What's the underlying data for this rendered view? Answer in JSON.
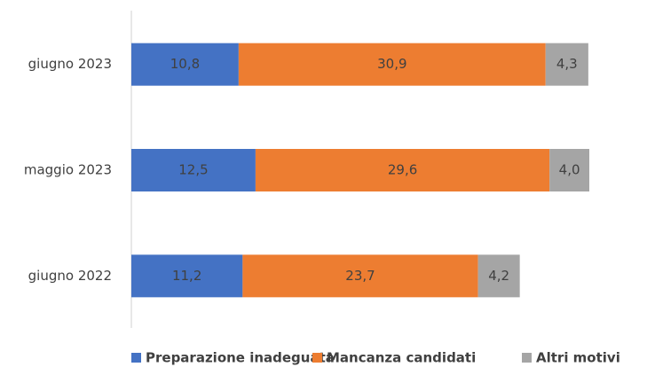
{
  "chart_data": {
    "type": "stacked-barh",
    "categories": [
      "giugno 2023",
      "maggio 2023",
      "giugno 2022"
    ],
    "series": [
      {
        "name": "Preparazione inadeguata",
        "color": "#4472c4",
        "values": [
          10.8,
          12.5,
          11.2
        ],
        "value_labels": [
          "10,8",
          "12,5",
          "11,2"
        ]
      },
      {
        "name": "Mancanza candidati",
        "color": "#ed7d31",
        "values": [
          30.9,
          29.6,
          23.7
        ],
        "value_labels": [
          "30,9",
          "29,6",
          "23,7"
        ]
      },
      {
        "name": "Altri motivi",
        "color": "#a5a5a5",
        "values": [
          4.3,
          4.0,
          4.2
        ],
        "value_labels": [
          "4,3",
          "4,0",
          "4,2"
        ]
      }
    ],
    "legend": "bottom"
  }
}
